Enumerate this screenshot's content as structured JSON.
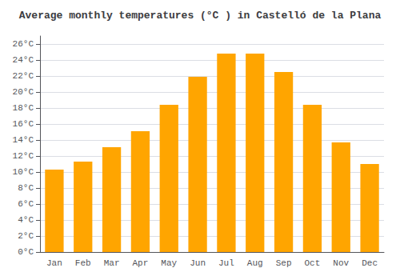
{
  "chart_data": {
    "type": "bar",
    "title": "Average monthly temperatures (°C ) in Castelló de la Plana",
    "categories": [
      "Jan",
      "Feb",
      "Mar",
      "Apr",
      "May",
      "Jun",
      "Jul",
      "Aug",
      "Sep",
      "Oct",
      "Nov",
      "Dec"
    ],
    "values": [
      10.3,
      11.3,
      13.1,
      15.1,
      18.4,
      21.9,
      24.8,
      24.8,
      22.5,
      18.4,
      13.7,
      11.0
    ],
    "color": "#FFA500",
    "ylim": [
      0,
      27
    ],
    "yticks": [
      {
        "value": 0,
        "label": "0°C"
      },
      {
        "value": 2,
        "label": "2°C"
      },
      {
        "value": 4,
        "label": "4°C"
      },
      {
        "value": 6,
        "label": "6°C"
      },
      {
        "value": 8,
        "label": "8°C"
      },
      {
        "value": 10,
        "label": "10°C"
      },
      {
        "value": 12,
        "label": "12°C"
      },
      {
        "value": 14,
        "label": "14°C"
      },
      {
        "value": 16,
        "label": "16°C"
      },
      {
        "value": 18,
        "label": "18°C"
      },
      {
        "value": 20,
        "label": "20°C"
      },
      {
        "value": 22,
        "label": "22°C"
      },
      {
        "value": 24,
        "label": "24°C"
      },
      {
        "value": 26,
        "label": "26°C"
      }
    ],
    "grid": true
  }
}
